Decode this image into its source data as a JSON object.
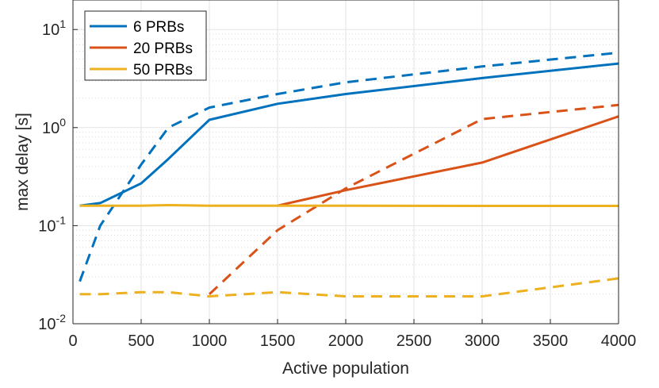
{
  "chart_data": {
    "type": "line",
    "title": "",
    "xlabel": "Active population",
    "ylabel": "max delay [s]",
    "yscale": "log",
    "xlim": [
      0,
      4000
    ],
    "ylim": [
      0.01,
      20
    ],
    "grid": true,
    "minor_grid": true,
    "legend_position": "top-left",
    "x_ticks": [
      {
        "value": 0,
        "label": "0"
      },
      {
        "value": 500,
        "label": "500"
      },
      {
        "value": 1000,
        "label": "1000"
      },
      {
        "value": 1500,
        "label": "1500"
      },
      {
        "value": 2000,
        "label": "2000"
      },
      {
        "value": 2500,
        "label": "2500"
      },
      {
        "value": 3000,
        "label": "3000"
      },
      {
        "value": 3500,
        "label": "3500"
      },
      {
        "value": 4000,
        "label": "4000"
      }
    ],
    "y_ticks": [
      {
        "value": 0.01,
        "base": "10",
        "exp": "-2"
      },
      {
        "value": 0.1,
        "base": "10",
        "exp": "-1"
      },
      {
        "value": 1,
        "base": "10",
        "exp": "0"
      },
      {
        "value": 10,
        "base": "10",
        "exp": "1"
      }
    ],
    "legend": [
      {
        "label": "6 PRBs",
        "color": "#0072BD"
      },
      {
        "label": "20 PRBs",
        "color": "#D95319"
      },
      {
        "label": "50 PRBs",
        "color": "#EDB120"
      }
    ],
    "series": [
      {
        "id": "prb6-solid",
        "name": "6 PRBs",
        "color": "#0072BD",
        "dash": "solid",
        "x": [
          50,
          200,
          500,
          700,
          1000,
          1500,
          2000,
          3000,
          4000
        ],
        "y": [
          0.16,
          0.17,
          0.27,
          0.48,
          1.2,
          1.75,
          2.2,
          3.2,
          4.5
        ]
      },
      {
        "id": "prb6-dashed",
        "name": "6 PRBs",
        "color": "#0072BD",
        "dash": "dashed",
        "x": [
          50,
          200,
          500,
          700,
          1000,
          1500,
          2000,
          3000,
          4000
        ],
        "y": [
          0.027,
          0.1,
          0.42,
          1.0,
          1.6,
          2.2,
          2.9,
          4.2,
          5.8
        ]
      },
      {
        "id": "prb20-solid",
        "name": "20 PRBs",
        "color": "#D95319",
        "dash": "solid",
        "x": [
          1500,
          2000,
          3000,
          4000
        ],
        "y": [
          0.16,
          0.23,
          0.44,
          1.3
        ]
      },
      {
        "id": "prb20-dashed",
        "name": "20 PRBs",
        "color": "#D95319",
        "dash": "dashed",
        "x": [
          1000,
          1500,
          2000,
          3000,
          4000
        ],
        "y": [
          0.02,
          0.09,
          0.24,
          1.22,
          1.7
        ]
      },
      {
        "id": "prb50-solid",
        "name": "50 PRBs",
        "color": "#EDB120",
        "dash": "solid",
        "x": [
          50,
          500,
          700,
          1000,
          1500,
          2000,
          3000,
          4000
        ],
        "y": [
          0.16,
          0.16,
          0.162,
          0.16,
          0.16,
          0.16,
          0.159,
          0.159
        ]
      },
      {
        "id": "prb50-dashed",
        "name": "50 PRBs",
        "color": "#EDB120",
        "dash": "dashed",
        "x": [
          50,
          200,
          500,
          700,
          1000,
          1500,
          2000,
          2500,
          3000,
          4000
        ],
        "y": [
          0.02,
          0.02,
          0.021,
          0.021,
          0.019,
          0.021,
          0.019,
          0.019,
          0.019,
          0.029
        ]
      }
    ]
  }
}
